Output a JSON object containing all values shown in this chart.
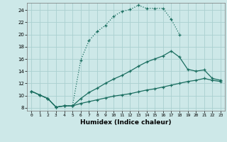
{
  "xlabel": "Humidex (Indice chaleur)",
  "bg_color": "#cde8e8",
  "grid_color": "#aad0d0",
  "line_color": "#1a6e60",
  "xlim": [
    -0.5,
    23.5
  ],
  "ylim": [
    7.5,
    25.2
  ],
  "xticks": [
    0,
    1,
    2,
    3,
    4,
    5,
    6,
    7,
    8,
    9,
    10,
    11,
    12,
    13,
    14,
    15,
    16,
    17,
    18,
    19,
    20,
    21,
    22,
    23
  ],
  "yticks": [
    8,
    10,
    12,
    14,
    16,
    18,
    20,
    22,
    24
  ],
  "c1x": [
    0,
    1,
    2,
    3,
    4,
    5,
    6,
    7,
    8,
    9,
    10,
    11,
    12,
    13,
    14,
    15,
    16,
    17,
    18
  ],
  "c1y": [
    10.7,
    10.1,
    9.5,
    8.1,
    8.3,
    8.3,
    15.8,
    19.0,
    20.5,
    21.5,
    23.0,
    23.8,
    24.1,
    24.8,
    24.3,
    24.3,
    24.3,
    22.5,
    20.0
  ],
  "c2x": [
    0,
    1,
    2,
    3,
    4,
    5,
    6,
    7,
    8,
    9,
    10,
    11,
    12,
    13,
    14,
    15,
    16,
    17,
    18,
    19,
    20,
    21,
    22,
    23
  ],
  "c2y": [
    10.7,
    10.1,
    9.5,
    8.1,
    8.3,
    8.3,
    9.5,
    10.5,
    11.2,
    12.0,
    12.7,
    13.3,
    14.0,
    14.8,
    15.5,
    16.0,
    16.5,
    17.3,
    16.3,
    14.3,
    14.0,
    14.2,
    12.8,
    12.5
  ],
  "c3x": [
    0,
    1,
    2,
    3,
    4,
    5,
    6,
    7,
    8,
    9,
    10,
    11,
    12,
    13,
    14,
    15,
    16,
    17,
    18,
    19,
    20,
    21,
    22,
    23
  ],
  "c3y": [
    10.7,
    10.1,
    9.5,
    8.1,
    8.3,
    8.3,
    8.7,
    9.0,
    9.3,
    9.6,
    9.9,
    10.1,
    10.3,
    10.6,
    10.9,
    11.1,
    11.4,
    11.7,
    12.0,
    12.3,
    12.5,
    12.8,
    12.5,
    12.3
  ]
}
